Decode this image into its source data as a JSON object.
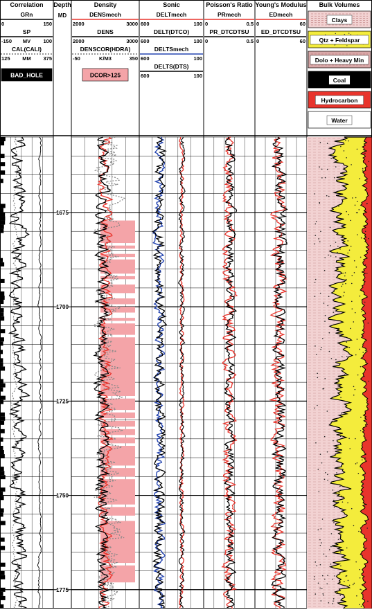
{
  "chart_data": {
    "type": "well-log",
    "depth_unit": "MD",
    "depth_range": [
      1655,
      1780
    ],
    "depth_ticks": [
      1675,
      1700,
      1725,
      1750,
      1775
    ],
    "tracks": [
      {
        "title": "Correlation",
        "curves": [
          {
            "name": "GRn",
            "min": "0",
            "max": "150",
            "unit": "",
            "color": "#000000",
            "style": "solid"
          },
          {
            "name": "SP",
            "min": "-150",
            "max": "100",
            "unit": "MV",
            "color": "#000000",
            "style": "solid"
          },
          {
            "name": "CAL(CALI)",
            "min": "125",
            "max": "375",
            "unit": "MM",
            "color": "#777777",
            "style": "dotted"
          }
        ],
        "flag": {
          "name": "BAD_HOLE",
          "color": "#000000",
          "text_color": "#ffffff"
        }
      },
      {
        "title": "Depth",
        "subtitle": "MD"
      },
      {
        "title": "Density",
        "curves": [
          {
            "name": "DENSmech",
            "min": "2000",
            "max": "3000",
            "unit": "",
            "color": "#e8342c",
            "style": "solid"
          },
          {
            "name": "DENS",
            "min": "2000",
            "max": "3000",
            "unit": "",
            "color": "#000000",
            "style": "solid"
          },
          {
            "name": "DENSCOR(HDRA)",
            "min": "-50",
            "max": "350",
            "unit": "K/M3",
            "color": "#777777",
            "style": "dotted"
          }
        ],
        "flag": {
          "name": "DCOR>125",
          "color": "#f4a4a8",
          "text_color": "#000000"
        }
      },
      {
        "title": "Sonic",
        "curves": [
          {
            "name": "DELTmech",
            "min": "600",
            "max": "100",
            "unit": "",
            "color": "#e8342c",
            "style": "solid"
          },
          {
            "name": "DELT(DTCO)",
            "min": "600",
            "max": "100",
            "unit": "",
            "color": "#000000",
            "style": "solid"
          },
          {
            "name": "DELTSmech",
            "min": "600",
            "max": "100",
            "unit": "",
            "color": "#2545b0",
            "style": "solid"
          },
          {
            "name": "DELTS(DTS)",
            "min": "600",
            "max": "100",
            "unit": "",
            "color": "#000000",
            "style": "solid"
          }
        ]
      },
      {
        "title": "Poisson's Ratio",
        "curves": [
          {
            "name": "PRmech",
            "min": "0",
            "max": "0.5",
            "unit": "",
            "color": "#e8342c",
            "style": "solid"
          },
          {
            "name": "PR_DTCDTSU",
            "min": "0",
            "max": "0.5",
            "unit": "",
            "color": "#000000",
            "style": "solid"
          }
        ]
      },
      {
        "title": "Young's Modulus",
        "curves": [
          {
            "name": "EDmech",
            "min": "0",
            "max": "60",
            "unit": "",
            "color": "#e8342c",
            "style": "solid"
          },
          {
            "name": "ED_DTCDTSU",
            "min": "0",
            "max": "60",
            "unit": "",
            "color": "#000000",
            "style": "solid"
          }
        ]
      },
      {
        "title": "Bulk Volumes",
        "legend": [
          {
            "name": "Clays",
            "color": "#f2d2d2"
          },
          {
            "name": "Qtz + Feldspar",
            "color": "#f4ec3c"
          },
          {
            "name": "Dolo + Heavy Min",
            "color": "#d9a8a8"
          },
          {
            "name": "Coal",
            "color": "#000000"
          },
          {
            "name": "Hydrocarbon",
            "color": "#e8342c"
          },
          {
            "name": "Water",
            "color": "#ffffff"
          }
        ]
      }
    ]
  }
}
